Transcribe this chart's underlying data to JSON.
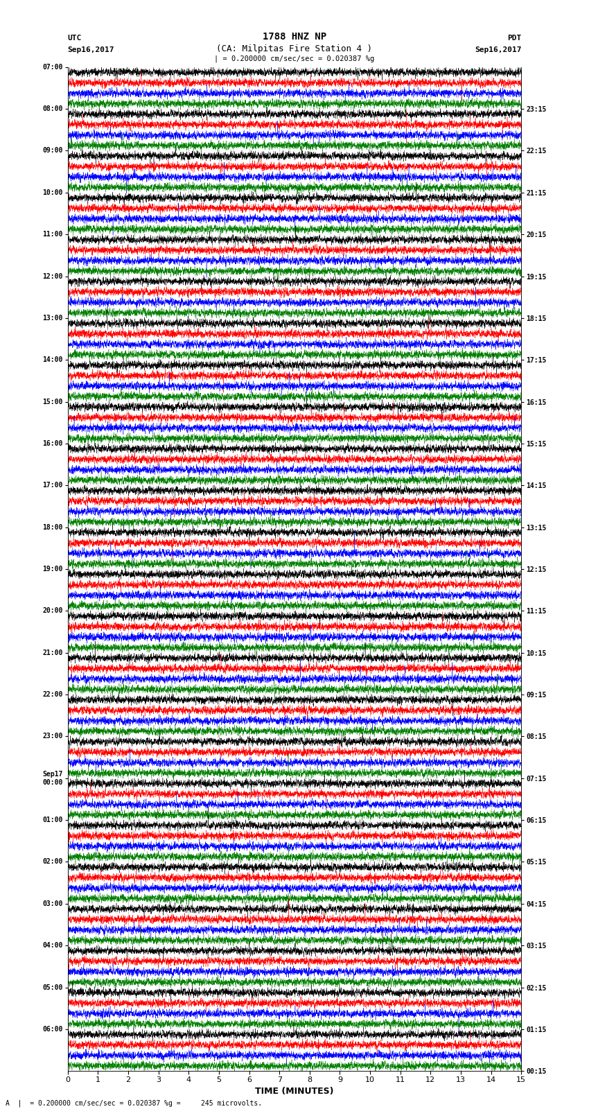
{
  "title_line1": "1788 HNZ NP",
  "title_line2": "(CA: Milpitas Fire Station 4 )",
  "scale_text": "| = 0.200000 cm/sec/sec = 0.020387 %g",
  "bottom_text": "A  |  = 0.200000 cm/sec/sec = 0.020387 %g =     245 microvolts.",
  "label_left_top": "UTC",
  "label_left_date": "Sep16,2017",
  "label_right_top": "PDT",
  "label_right_date": "Sep16,2017",
  "xlabel": "TIME (MINUTES)",
  "left_times": [
    "07:00",
    "08:00",
    "09:00",
    "10:00",
    "11:00",
    "12:00",
    "13:00",
    "14:00",
    "15:00",
    "16:00",
    "17:00",
    "18:00",
    "19:00",
    "20:00",
    "21:00",
    "22:00",
    "23:00",
    "Sep17\n00:00",
    "01:00",
    "02:00",
    "03:00",
    "04:00",
    "05:00",
    "06:00"
  ],
  "right_times": [
    "00:15",
    "01:15",
    "02:15",
    "03:15",
    "04:15",
    "05:15",
    "06:15",
    "07:15",
    "08:15",
    "09:15",
    "10:15",
    "11:15",
    "12:15",
    "13:15",
    "14:15",
    "15:15",
    "16:15",
    "17:15",
    "18:15",
    "19:15",
    "20:15",
    "21:15",
    "22:15",
    "23:15"
  ],
  "colors": [
    "black",
    "red",
    "blue",
    "green"
  ],
  "n_rows": 24,
  "traces_per_row": 4,
  "fig_width": 8.5,
  "fig_height": 16.13,
  "bg_color": "white",
  "xmin": 0,
  "xmax": 15,
  "xticks": [
    0,
    1,
    2,
    3,
    4,
    5,
    6,
    7,
    8,
    9,
    10,
    11,
    12,
    13,
    14,
    15
  ],
  "grid_color": "#aaaaaa",
  "grid_lw": 0.4
}
